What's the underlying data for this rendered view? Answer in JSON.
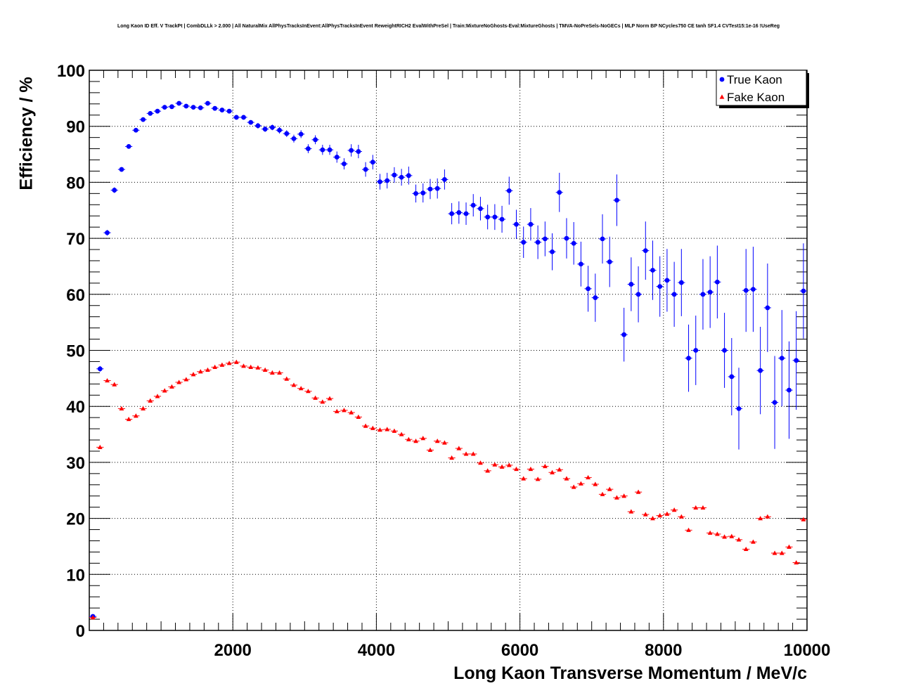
{
  "chart_data": {
    "type": "scatter",
    "title": "Long Kaon ID Eff. V TrackPt | CombDLLk > 2.000 | All NaturalMix AllPhysTracksInEvent:AllPhysTracksInEvent ReweightRICH2 EvalWithPreSel | Train:MixtureNoGhosts-Eval:MixtureGhosts | TMVA-NoPreSels-NoGECs | MLP Norm BP NCycles750 CE tanh SF1.4 CVTest15:1e-16 !UseReg",
    "xlabel": "Long Kaon Transverse Momentum / MeV/c",
    "ylabel": "Efficiency / %",
    "xlim": [
      0,
      10000
    ],
    "ylim": [
      0,
      100
    ],
    "xticks": [
      2000,
      4000,
      6000,
      8000,
      10000
    ],
    "yticks": [
      0,
      10,
      20,
      30,
      40,
      50,
      60,
      70,
      80,
      90,
      100
    ],
    "grid": true,
    "legend_position": "top-right",
    "bin_width": 100,
    "series": [
      {
        "name": "True Kaon",
        "color": "#0000ff",
        "marker": "circle",
        "x": [
          50,
          150,
          250,
          350,
          450,
          550,
          650,
          750,
          850,
          950,
          1050,
          1150,
          1250,
          1350,
          1450,
          1550,
          1650,
          1750,
          1850,
          1950,
          2050,
          2150,
          2250,
          2350,
          2450,
          2550,
          2650,
          2750,
          2850,
          2950,
          3050,
          3150,
          3250,
          3350,
          3450,
          3550,
          3650,
          3750,
          3850,
          3950,
          4050,
          4150,
          4250,
          4350,
          4450,
          4550,
          4650,
          4750,
          4850,
          4950,
          5050,
          5150,
          5250,
          5350,
          5450,
          5550,
          5650,
          5750,
          5850,
          5950,
          6050,
          6150,
          6250,
          6350,
          6450,
          6550,
          6650,
          6750,
          6850,
          6950,
          7050,
          7150,
          7250,
          7350,
          7450,
          7550,
          7650,
          7750,
          7850,
          7950,
          8050,
          8150,
          8250,
          8350,
          8450,
          8550,
          8650,
          8750,
          8850,
          8950,
          9050,
          9150,
          9250,
          9350,
          9450,
          9550,
          9650,
          9750,
          9850,
          9950
        ],
        "y": [
          2.5,
          46.7,
          71.0,
          78.6,
          82.3,
          86.4,
          89.3,
          91.2,
          92.3,
          92.7,
          93.4,
          93.5,
          94.1,
          93.6,
          93.4,
          93.3,
          94.1,
          93.2,
          92.9,
          92.7,
          91.6,
          91.6,
          90.7,
          90.1,
          89.5,
          89.8,
          89.3,
          88.7,
          87.8,
          88.6,
          86.0,
          87.6,
          85.8,
          85.8,
          84.5,
          83.3,
          85.7,
          85.5,
          82.3,
          83.6,
          80.1,
          80.3,
          81.3,
          80.9,
          81.2,
          78.0,
          78.1,
          78.8,
          78.9,
          80.5,
          74.4,
          74.6,
          74.4,
          75.9,
          75.3,
          73.8,
          73.8,
          73.4,
          78.5,
          72.5,
          69.3,
          72.5,
          69.3,
          69.9,
          67.6,
          78.2,
          70.0,
          69.1,
          65.4,
          61.0,
          59.4,
          69.9,
          65.8,
          76.8,
          52.8,
          61.8,
          60.0,
          67.8,
          64.3,
          61.4,
          62.5,
          60.0,
          62.1,
          48.6,
          50.0,
          60.0,
          60.4,
          62.2,
          50.0,
          45.3,
          39.6,
          60.7,
          60.9,
          46.4,
          57.6,
          40.7,
          48.6,
          42.9,
          48.2,
          60.6
        ],
        "err": [
          0.2,
          0.5,
          0.5,
          0.5,
          0.4,
          0.4,
          0.4,
          0.4,
          0.4,
          0.4,
          0.4,
          0.4,
          0.4,
          0.4,
          0.4,
          0.4,
          0.4,
          0.4,
          0.4,
          0.4,
          0.4,
          0.4,
          0.4,
          0.5,
          0.5,
          0.5,
          0.6,
          0.6,
          0.7,
          0.7,
          0.8,
          0.8,
          0.9,
          0.9,
          1.0,
          1.0,
          1.1,
          1.2,
          1.3,
          1.3,
          1.4,
          1.4,
          1.4,
          1.5,
          1.6,
          1.6,
          1.7,
          1.8,
          1.8,
          1.8,
          1.9,
          2.0,
          2.0,
          2.0,
          2.1,
          2.2,
          2.3,
          2.4,
          2.5,
          2.6,
          2.8,
          2.9,
          3.0,
          3.1,
          3.3,
          3.5,
          3.6,
          3.8,
          4.0,
          4.1,
          4.3,
          4.4,
          4.5,
          4.6,
          4.8,
          4.8,
          5.0,
          5.2,
          5.3,
          5.4,
          5.6,
          5.8,
          6.0,
          6.0,
          6.2,
          6.3,
          6.4,
          6.5,
          6.7,
          6.9,
          7.3,
          7.4,
          7.6,
          7.8,
          7.9,
          8.3,
          8.6,
          8.7,
          8.8,
          8.5
        ]
      },
      {
        "name": "Fake Kaon",
        "color": "#ff0000",
        "marker": "triangle",
        "x": [
          50,
          150,
          250,
          350,
          450,
          550,
          650,
          750,
          850,
          950,
          1050,
          1150,
          1250,
          1350,
          1450,
          1550,
          1650,
          1750,
          1850,
          1950,
          2050,
          2150,
          2250,
          2350,
          2450,
          2550,
          2650,
          2750,
          2850,
          2950,
          3050,
          3150,
          3250,
          3350,
          3450,
          3550,
          3650,
          3750,
          3850,
          3950,
          4050,
          4150,
          4250,
          4350,
          4450,
          4550,
          4650,
          4750,
          4850,
          4950,
          5050,
          5150,
          5250,
          5350,
          5450,
          5550,
          5650,
          5750,
          5850,
          5950,
          6050,
          6150,
          6250,
          6350,
          6450,
          6550,
          6650,
          6750,
          6850,
          6950,
          7050,
          7150,
          7250,
          7350,
          7450,
          7550,
          7650,
          7750,
          7850,
          7950,
          8050,
          8150,
          8250,
          8350,
          8450,
          8550,
          8650,
          8750,
          8850,
          8950,
          9050,
          9150,
          9250,
          9350,
          9450,
          9550,
          9650,
          9750,
          9850,
          9950
        ],
        "y": [
          2.3,
          32.7,
          44.6,
          43.9,
          39.6,
          37.7,
          38.3,
          39.6,
          41.0,
          41.8,
          42.8,
          43.5,
          44.3,
          44.8,
          45.7,
          46.2,
          46.5,
          47.0,
          47.4,
          47.7,
          47.9,
          47.2,
          47.0,
          46.9,
          46.5,
          46.0,
          46.0,
          44.9,
          43.8,
          43.2,
          42.7,
          41.5,
          40.8,
          41.4,
          39.1,
          39.3,
          38.9,
          38.1,
          36.5,
          36.1,
          35.8,
          35.9,
          35.6,
          35.0,
          34.1,
          33.8,
          34.3,
          32.2,
          33.8,
          33.5,
          30.8,
          32.5,
          31.5,
          31.5,
          29.9,
          28.5,
          29.6,
          29.2,
          29.5,
          28.8,
          27.1,
          28.8,
          27.0,
          29.3,
          28.2,
          28.7,
          27.1,
          25.6,
          26.2,
          27.3,
          26.1,
          24.3,
          25.2,
          23.7,
          24.0,
          21.2,
          24.7,
          20.7,
          20.0,
          20.5,
          20.8,
          21.5,
          20.3,
          17.9,
          21.9,
          21.9,
          17.4,
          17.2,
          16.7,
          16.8,
          16.2,
          14.5,
          15.8,
          20.0,
          20.3,
          13.8,
          13.8,
          14.9,
          12.1,
          19.8
        ]
      }
    ]
  }
}
